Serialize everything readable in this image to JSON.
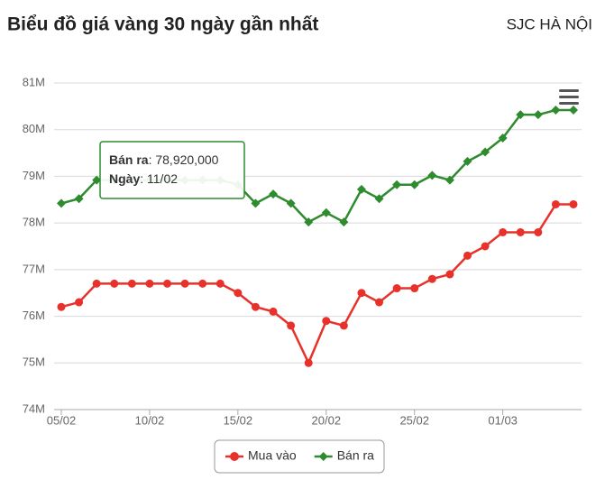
{
  "chart_data": {
    "type": "line",
    "title": "Biểu đồ giá vàng 30 ngày gần nhất",
    "subtitle": "SJC HÀ NỘI",
    "categories": [
      "05/02",
      null,
      null,
      null,
      null,
      "10/02",
      null,
      null,
      null,
      null,
      "15/02",
      null,
      null,
      null,
      null,
      "20/02",
      null,
      null,
      null,
      null,
      "25/02",
      null,
      null,
      null,
      null,
      "01/03",
      null,
      null,
      null,
      null
    ],
    "series": [
      {
        "name": "Mua vào",
        "color": "#e8312a",
        "marker": "circle",
        "values": [
          76200000,
          76300000,
          76700000,
          76700000,
          76700000,
          76700000,
          76700000,
          76700000,
          76700000,
          76700000,
          76500000,
          76200000,
          76100000,
          75800000,
          75000000,
          75900000,
          75800000,
          76500000,
          76300000,
          76600000,
          76600000,
          76800000,
          76900000,
          77300000,
          77500000,
          77800000,
          77800000,
          77800000,
          78400000,
          78400000
        ]
      },
      {
        "name": "Bán ra",
        "color": "#2e8b2e",
        "marker": "diamond",
        "values": [
          78420000,
          78520000,
          78920000,
          78920000,
          78920000,
          78920000,
          78920000,
          78920000,
          78920000,
          78920000,
          78820000,
          78420000,
          78620000,
          78420000,
          78020000,
          78220000,
          78020000,
          78720000,
          78520000,
          78820000,
          78820000,
          79020000,
          78920000,
          79320000,
          79520000,
          79820000,
          80320000,
          80320000,
          80420000,
          80420000
        ]
      }
    ],
    "ylim": [
      74000000,
      81000000
    ],
    "yticks": [
      {
        "value": 74000000,
        "label": "74M"
      },
      {
        "value": 75000000,
        "label": "75M"
      },
      {
        "value": 76000000,
        "label": "76M"
      },
      {
        "value": 77000000,
        "label": "77M"
      },
      {
        "value": 78000000,
        "label": "78M"
      },
      {
        "value": 79000000,
        "label": "79M"
      },
      {
        "value": 80000000,
        "label": "80M"
      },
      {
        "value": 81000000,
        "label": "81M"
      }
    ],
    "grid": true,
    "legend": "bottom",
    "tooltip": {
      "series_label": "Bán ra",
      "value_label": "78,920,000",
      "date_label": "Ngày",
      "date": "11/02",
      "series_index": 1,
      "point_index": 6
    }
  }
}
